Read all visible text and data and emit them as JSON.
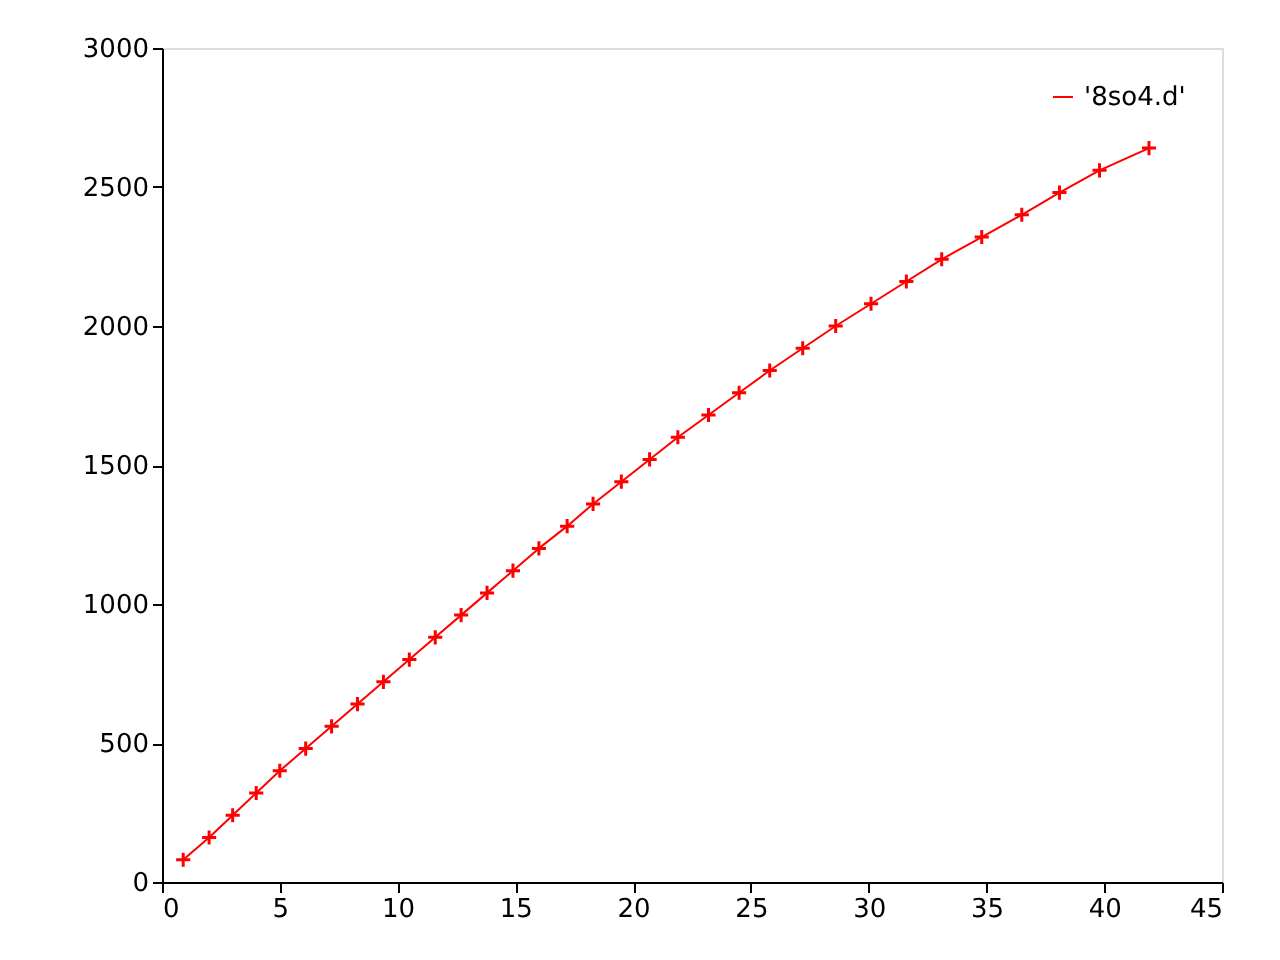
{
  "chart_data": {
    "type": "line",
    "xlim": [
      0,
      45
    ],
    "xticks": [
      0,
      5,
      10,
      15,
      20,
      25,
      30,
      35,
      40,
      45
    ],
    "ylim": [
      0,
      3000
    ],
    "yticks": [
      0,
      500,
      1000,
      1500,
      2000,
      2500,
      3000
    ],
    "grid": false,
    "legend": "top right",
    "marker": "cross",
    "line_style": "solid",
    "series": [
      {
        "name": "'8so4.d'",
        "color": "#ff0000",
        "x": [
          0.9,
          2.0,
          3.0,
          4.0,
          5.0,
          6.1,
          7.2,
          8.3,
          9.4,
          10.5,
          11.6,
          12.7,
          13.8,
          14.9,
          16.0,
          17.2,
          18.3,
          19.5,
          20.7,
          21.9,
          23.2,
          24.5,
          25.8,
          27.2,
          28.6,
          30.1,
          31.6,
          33.1,
          34.8,
          36.5,
          38.1,
          39.8,
          41.9
        ],
        "values": [
          80,
          160,
          240,
          320,
          400,
          480,
          560,
          640,
          720,
          800,
          880,
          960,
          1040,
          1120,
          1200,
          1280,
          1360,
          1440,
          1520,
          1600,
          1680,
          1760,
          1840,
          1920,
          2000,
          2080,
          2160,
          2240,
          2320,
          2400,
          2480,
          2560,
          2640
        ]
      }
    ]
  }
}
